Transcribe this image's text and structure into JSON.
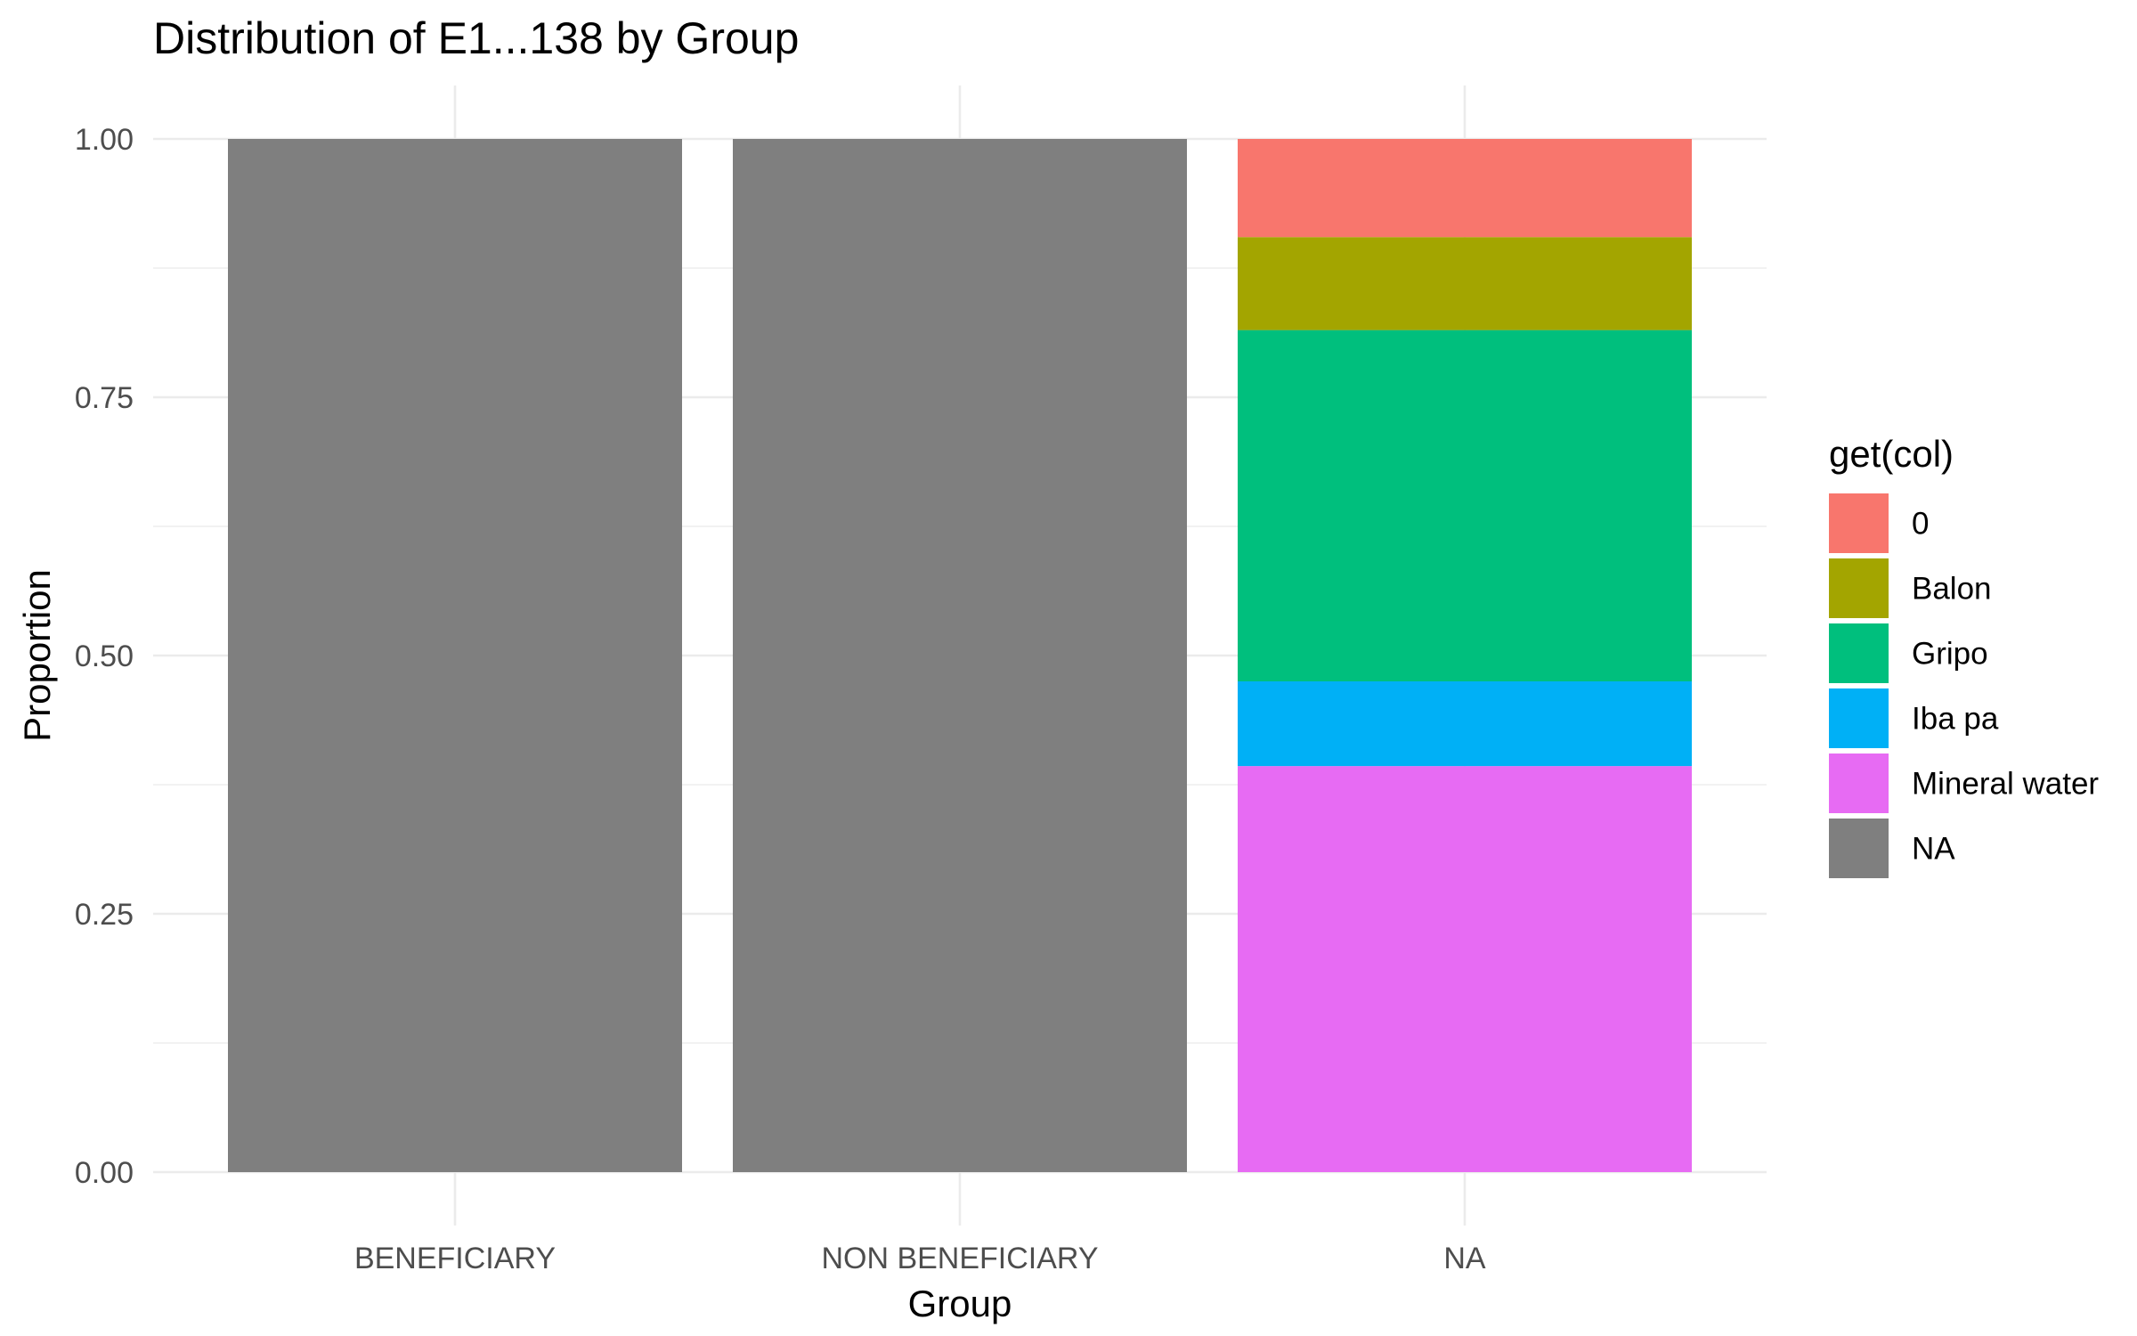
{
  "chart_data": {
    "type": "bar",
    "stacked": true,
    "normalized": true,
    "title": "Distribution of E1...138 by Group",
    "xlabel": "Group",
    "ylabel": "Proportion",
    "ylim": [
      0,
      1
    ],
    "yticks": [
      "0.00",
      "0.25",
      "0.50",
      "0.75",
      "1.00"
    ],
    "ytick_values": [
      0,
      0.25,
      0.5,
      0.75,
      1.0
    ],
    "categories": [
      "BENEFICIARY",
      "NON BENEFICIARY",
      "NA"
    ],
    "grid": true,
    "legend": {
      "title": "get(col)",
      "placement": "right"
    },
    "series": [
      {
        "name": "0",
        "color": "#F8766D",
        "values": [
          0,
          0,
          0.095
        ]
      },
      {
        "name": "Balon",
        "color": "#A3A500",
        "values": [
          0,
          0,
          0.09
        ]
      },
      {
        "name": "Gripo",
        "color": "#00BF7D",
        "values": [
          0,
          0,
          0.34
        ]
      },
      {
        "name": "Iba pa",
        "color": "#00B0F6",
        "values": [
          0,
          0,
          0.082
        ]
      },
      {
        "name": "Mineral water",
        "color": "#E76BF3",
        "values": [
          0,
          0,
          0.393
        ]
      },
      {
        "name": "NA",
        "color": "#7F7F7F",
        "values": [
          1.0,
          1.0,
          0
        ]
      }
    ]
  }
}
